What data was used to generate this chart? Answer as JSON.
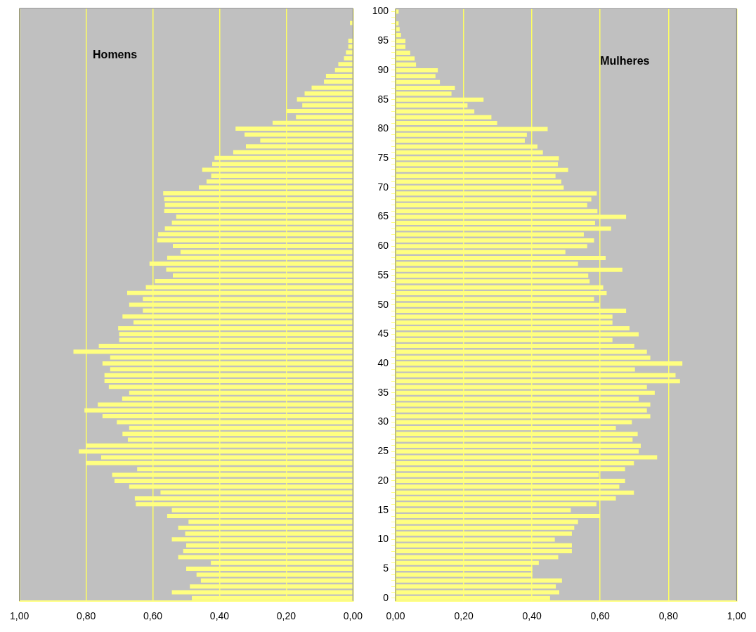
{
  "chart_data": [
    {
      "type": "bar",
      "orientation": "horizontal",
      "tick_labels": "x",
      "grid": "x",
      "categories": [
        "100",
        null,
        null,
        null,
        null,
        "95",
        null,
        null,
        null,
        null,
        "90",
        null,
        null,
        null,
        null,
        "85",
        null,
        null,
        null,
        null,
        "80",
        null,
        null,
        null,
        null,
        "75",
        null,
        null,
        null,
        null,
        "70",
        null,
        null,
        null,
        null,
        "65",
        null,
        null,
        null,
        null,
        "60",
        null,
        null,
        null,
        null,
        "55",
        null,
        null,
        null,
        null,
        "50",
        null,
        null,
        null,
        null,
        "45",
        null,
        null,
        null,
        null,
        "40",
        null,
        null,
        null,
        null,
        "35",
        null,
        null,
        null,
        null,
        "30",
        null,
        null,
        null,
        null,
        "25",
        null,
        null,
        null,
        null,
        "20",
        null,
        null,
        null,
        null,
        "15",
        null,
        null,
        null,
        null,
        "10",
        null,
        null,
        null,
        null,
        "5",
        null,
        null,
        null,
        null,
        "0"
      ],
      "xlim": [
        1,
        0
      ],
      "xticks": [
        {
          "value": 1,
          "label": "1,00"
        },
        {
          "value": 0.8,
          "label": "0,80"
        },
        {
          "value": 0.6,
          "label": "0,60"
        },
        {
          "value": 0.4,
          "label": "0,40"
        },
        {
          "value": 0.2,
          "label": "0,20"
        },
        {
          "value": 0,
          "label": "0,00"
        }
      ],
      "series": [
        {
          "name": "Homens",
          "color": "#ffff80",
          "values": [
            0,
            null,
            0.009,
            null,
            null,
            0.014,
            0.014,
            0.021,
            0.027,
            0.044,
            0.054,
            0.081,
            0.087,
            0.124,
            0.145,
            0.168,
            0.152,
            0.198,
            0.171,
            0.241,
            0.352,
            0.325,
            0.278,
            0.321,
            0.359,
            0.415,
            0.422,
            0.452,
            0.425,
            0.439,
            0.462,
            0.569,
            0.566,
            0.564,
            0.566,
            0.53,
            0.543,
            0.564,
            0.584,
            0.587,
            0.54,
            0.517,
            0.557,
            0.61,
            0.56,
            0.54,
            0.594,
            0.621,
            0.677,
            0.63,
            0.671,
            0.63,
            0.691,
            0.658,
            0.704,
            0.701,
            0.701,
            0.762,
            0.838,
            0.728,
            0.751,
            0.728,
            0.745,
            0.745,
            0.732,
            0.671,
            0.692,
            0.765,
            0.805,
            0.751,
            0.708,
            0.671,
            0.691,
            0.675,
            0.801,
            0.822,
            0.755,
            0.801,
            0.647,
            0.722,
            0.715,
            0.671,
            0.577,
            0.654,
            0.651,
            0.543,
            0.557,
            0.493,
            0.524,
            0.503,
            0.543,
            0.5,
            0.509,
            0.524,
            0.426,
            0.5,
            0.469,
            0.456,
            0.489,
            0.543,
            0.483
          ]
        }
      ]
    },
    {
      "type": "bar",
      "orientation": "horizontal",
      "grid": "x",
      "categories": [
        "100",
        null,
        null,
        null,
        null,
        "95",
        null,
        null,
        null,
        null,
        "90",
        null,
        null,
        null,
        null,
        "85",
        null,
        null,
        null,
        null,
        "80",
        null,
        null,
        null,
        null,
        "75",
        null,
        null,
        null,
        null,
        "70",
        null,
        null,
        null,
        null,
        "65",
        null,
        null,
        null,
        null,
        "60",
        null,
        null,
        null,
        null,
        "55",
        null,
        null,
        null,
        null,
        "50",
        null,
        null,
        null,
        null,
        "45",
        null,
        null,
        null,
        null,
        "40",
        null,
        null,
        null,
        null,
        "35",
        null,
        null,
        null,
        null,
        "30",
        null,
        null,
        null,
        null,
        "25",
        null,
        null,
        null,
        null,
        "20",
        null,
        null,
        null,
        null,
        "15",
        null,
        null,
        null,
        null,
        "10",
        null,
        null,
        null,
        null,
        "5",
        null,
        null,
        null,
        null,
        "0"
      ],
      "xlim": [
        0,
        1
      ],
      "xticks": [
        {
          "value": 0,
          "label": "0,00"
        },
        {
          "value": 0.2,
          "label": "0,20"
        },
        {
          "value": 0.4,
          "label": "0,40"
        },
        {
          "value": 0.6,
          "label": "0,60"
        },
        {
          "value": 0.8,
          "label": "0,80"
        },
        {
          "value": 1,
          "label": "1,00"
        }
      ],
      "series": [
        {
          "name": "Mulheres",
          "color": "#ffff80",
          "values": [
            0.009,
            0.002,
            0.009,
            0.012,
            0.016,
            0.029,
            0.029,
            0.043,
            0.056,
            0.06,
            0.124,
            0.117,
            0.13,
            0.174,
            0.164,
            0.258,
            0.211,
            0.231,
            0.281,
            0.298,
            0.446,
            0.385,
            0.379,
            0.416,
            0.432,
            0.479,
            0.476,
            0.506,
            0.469,
            0.486,
            0.493,
            0.59,
            0.574,
            0.562,
            0.592,
            0.676,
            0.585,
            0.632,
            0.552,
            0.582,
            0.562,
            0.498,
            0.616,
            0.535,
            0.665,
            0.565,
            0.569,
            0.609,
            0.619,
            0.582,
            0.599,
            0.676,
            0.636,
            0.636,
            0.686,
            0.713,
            0.636,
            0.7,
            0.737,
            0.747,
            0.841,
            0.702,
            0.821,
            0.834,
            0.737,
            0.76,
            0.713,
            0.747,
            0.737,
            0.747,
            0.693,
            0.646,
            0.71,
            0.695,
            0.719,
            0.713,
            0.767,
            0.699,
            0.673,
            0.596,
            0.673,
            0.656,
            0.699,
            0.646,
            0.589,
            0.514,
            0.599,
            0.535,
            0.524,
            0.517,
            0.467,
            0.517,
            0.517,
            0.477,
            0.42,
            0.401,
            0.401,
            0.488,
            0.47,
            0.48,
            0.453
          ]
        }
      ]
    }
  ]
}
